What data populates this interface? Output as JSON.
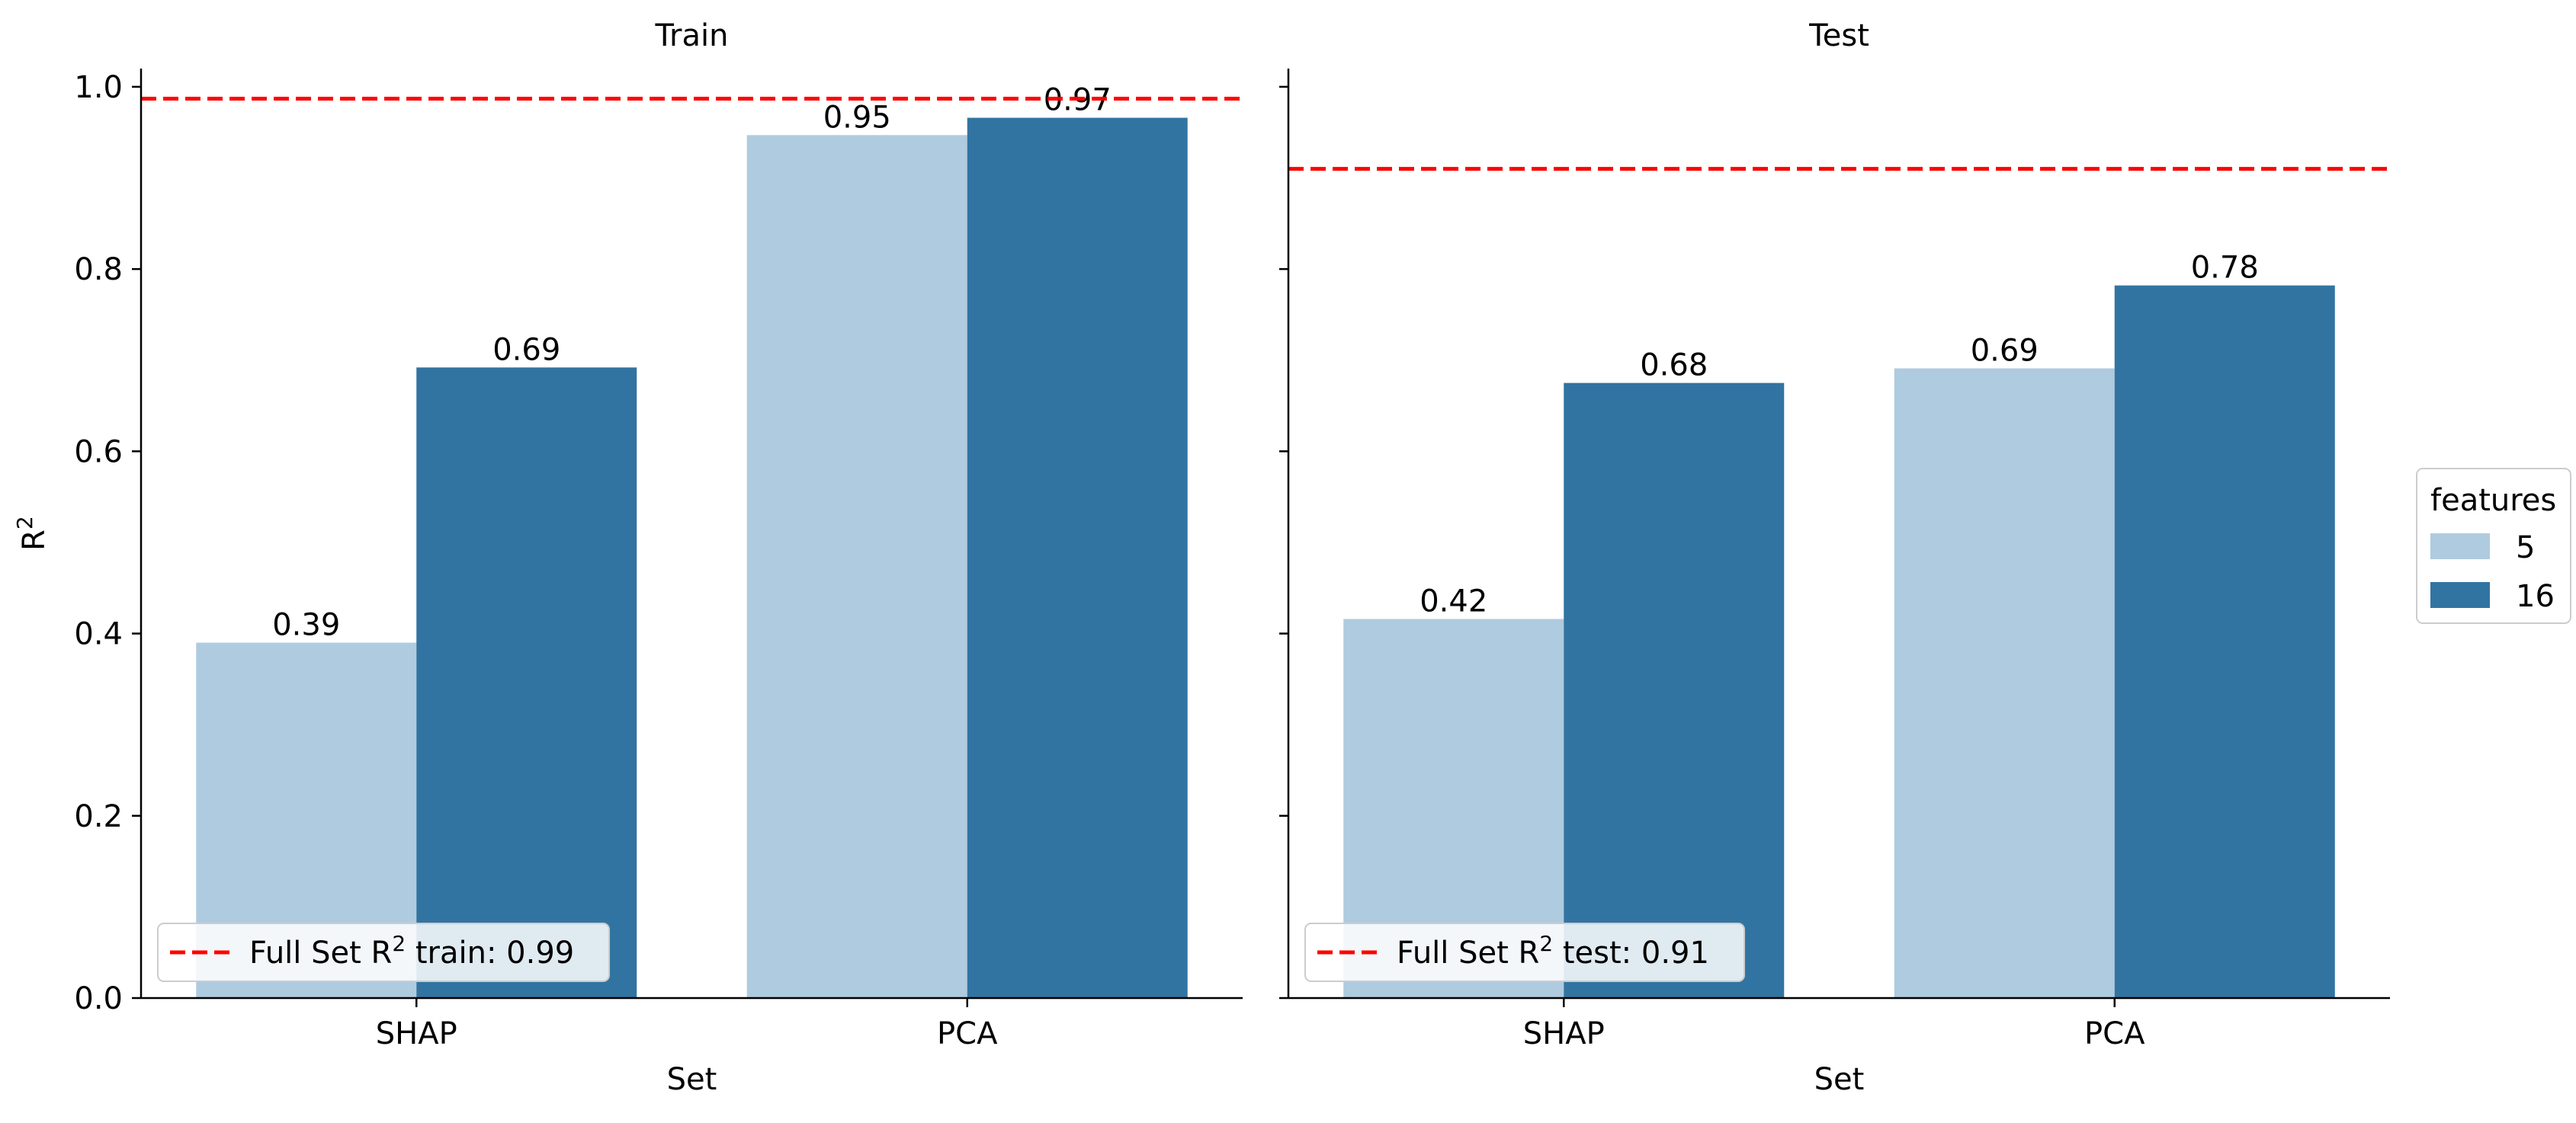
{
  "chart_data": {
    "type": "bar",
    "ylabel": "R²",
    "ylabel_base": "R",
    "ylabel_sup": "2",
    "xlabel": "Set",
    "ylim": [
      0,
      1.02
    ],
    "yticks": [
      0.0,
      0.2,
      0.4,
      0.6,
      0.8,
      1.0
    ],
    "ytick_labels": [
      "0.0",
      "0.2",
      "0.4",
      "0.6",
      "0.8",
      "1.0"
    ],
    "legend": {
      "title": "features",
      "placement": "right",
      "entries": [
        {
          "label": "5",
          "color": "#afcbdf"
        },
        {
          "label": "16",
          "color": "#3274a1"
        }
      ]
    },
    "panels": [
      {
        "title": "Train",
        "categories": [
          "SHAP",
          "PCA"
        ],
        "series": [
          {
            "name": "5",
            "values": [
              0.39,
              0.947
            ],
            "labels": [
              "0.39",
              "0.95"
            ]
          },
          {
            "name": "16",
            "values": [
              0.692,
              0.966
            ],
            "labels": [
              "0.69",
              "0.97"
            ]
          }
        ],
        "reference_line": {
          "value": 0.987,
          "label_prefix": "Full Set R",
          "label_sup": "2",
          "label_suffix": " train: 0.99",
          "color": "#ff0000"
        }
      },
      {
        "title": "Test",
        "categories": [
          "SHAP",
          "PCA"
        ],
        "series": [
          {
            "name": "5",
            "values": [
              0.416,
              0.691
            ],
            "labels": [
              "0.42",
              "0.69"
            ]
          },
          {
            "name": "16",
            "values": [
              0.675,
              0.782
            ],
            "labels": [
              "0.68",
              "0.78"
            ]
          }
        ],
        "reference_line": {
          "value": 0.91,
          "label_prefix": "Full Set R",
          "label_sup": "2",
          "label_suffix": " test: 0.91",
          "color": "#ff0000"
        }
      }
    ]
  }
}
